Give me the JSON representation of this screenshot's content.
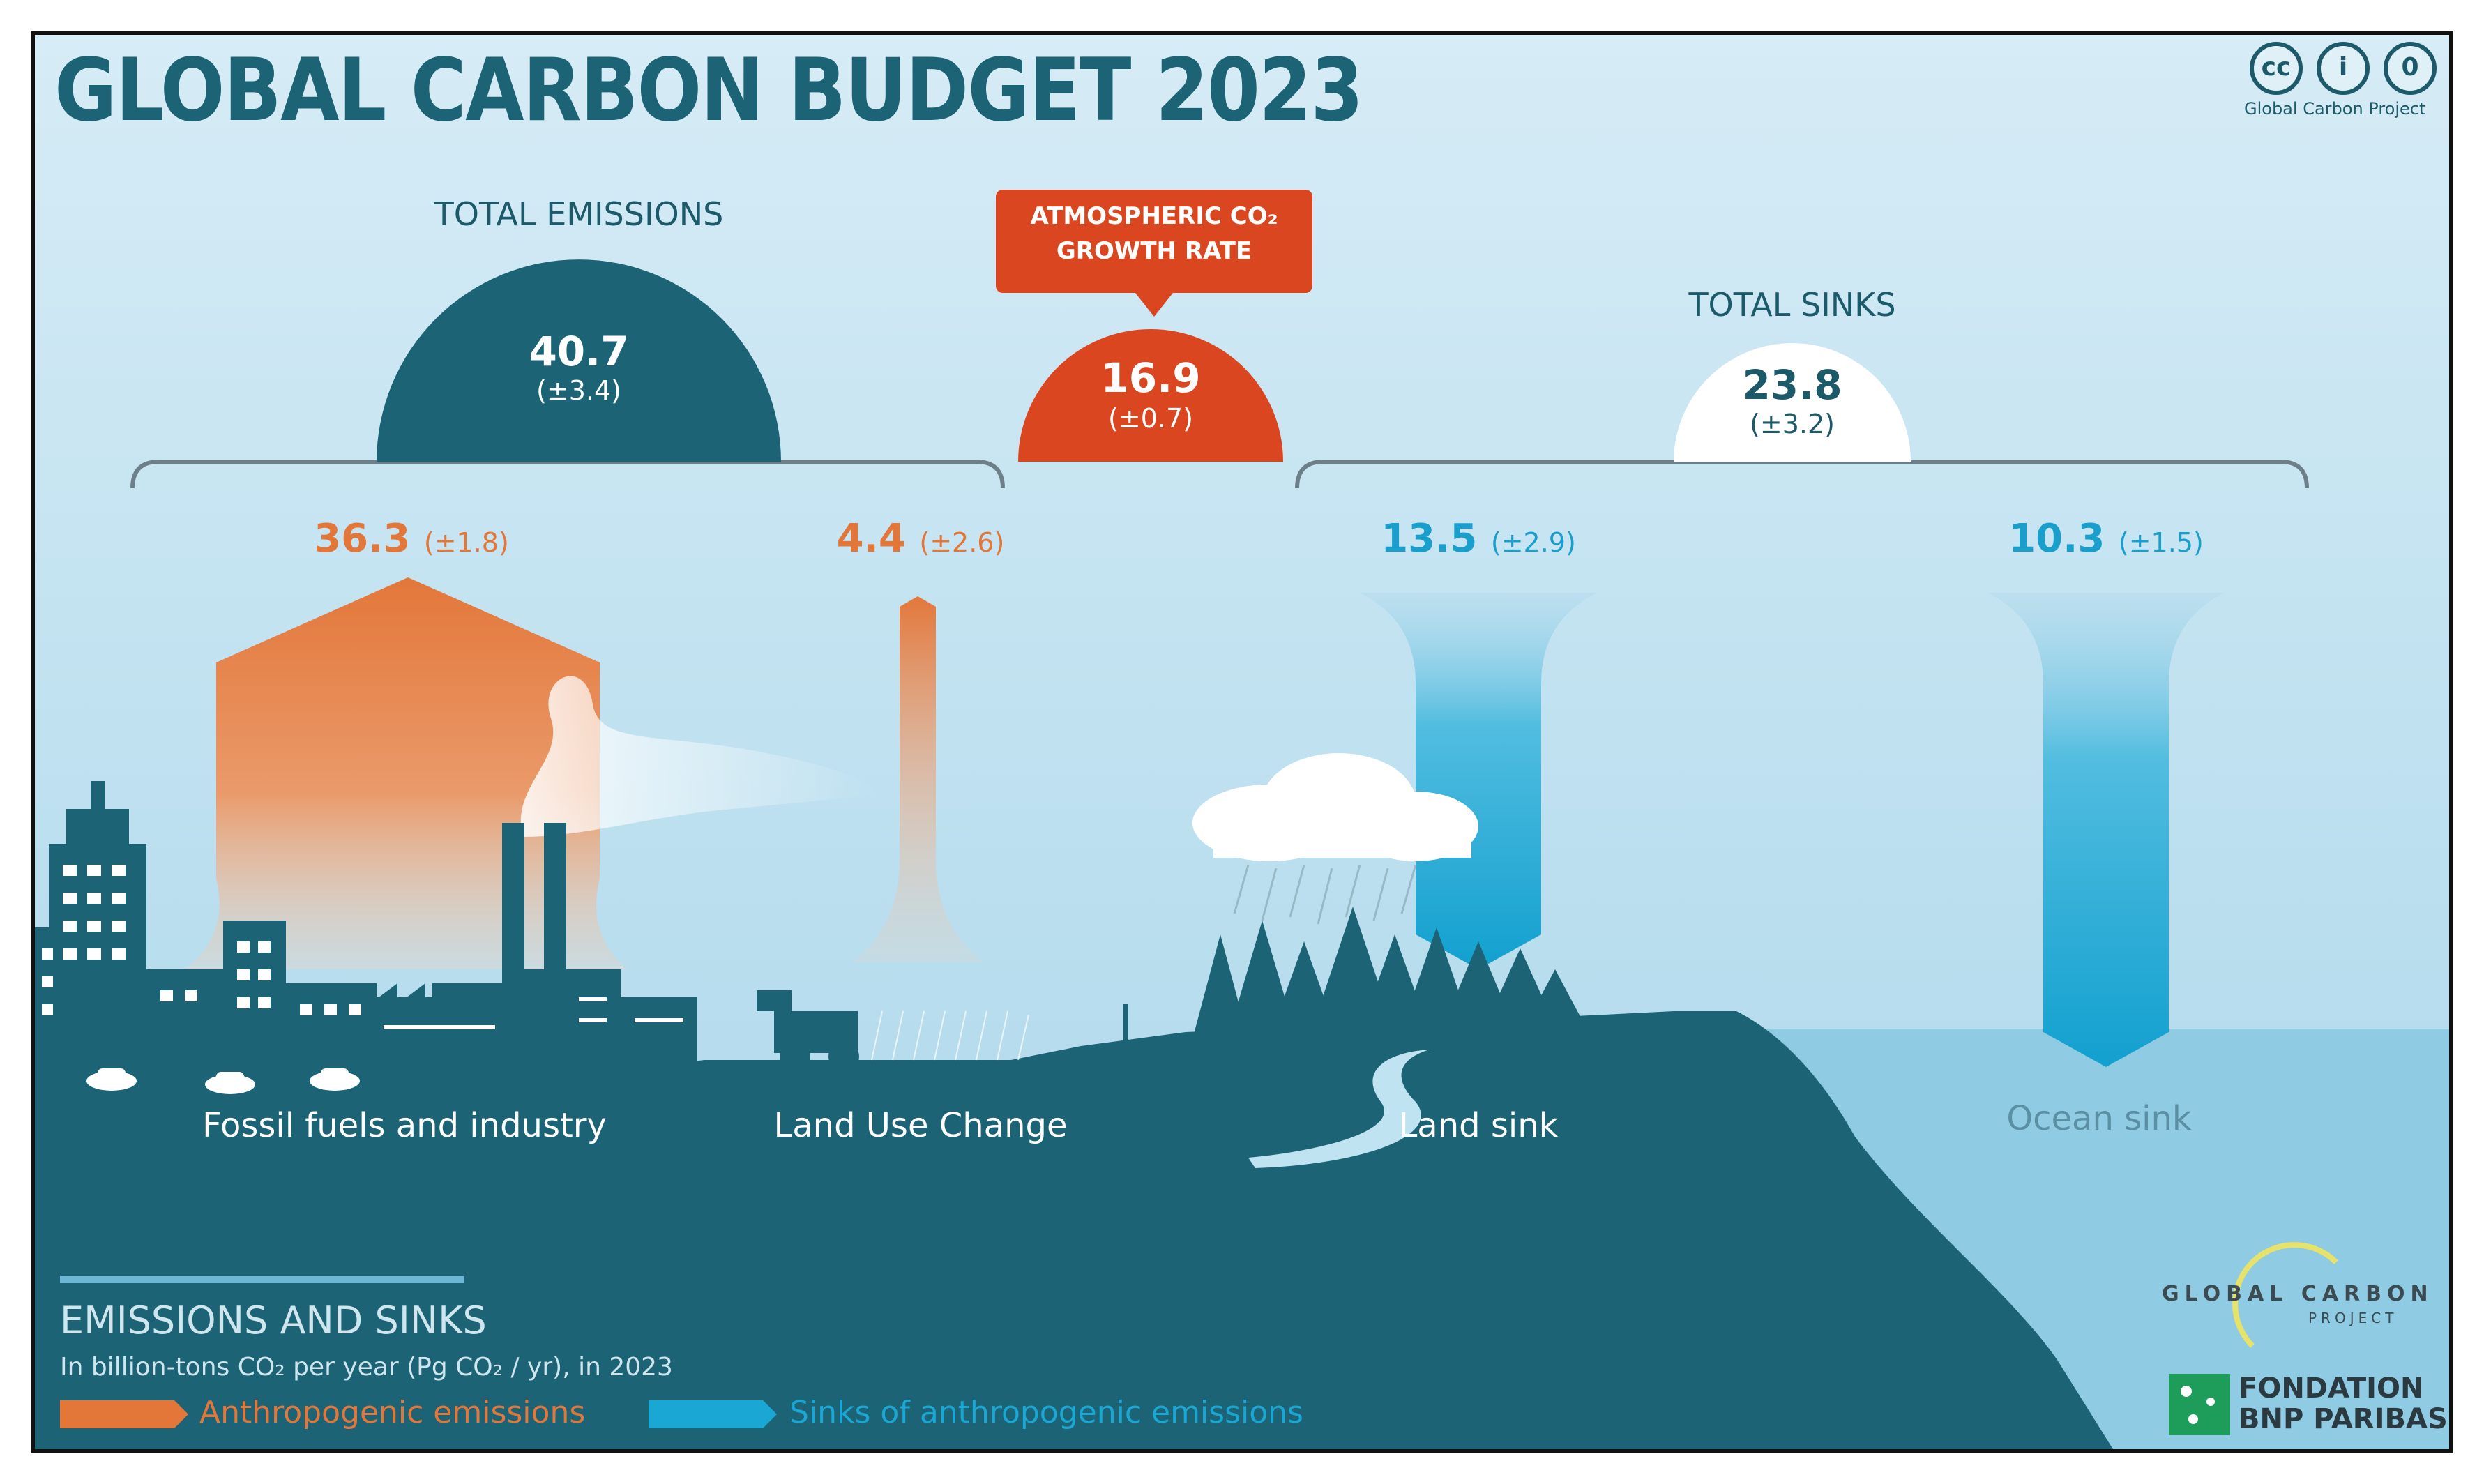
{
  "title": "GLOBAL CARBON BUDGET 2023",
  "license": {
    "icons": [
      "cc-icon",
      "attribution-icon",
      "zero-icon"
    ],
    "icon_glyphs": [
      "cc",
      "i",
      "0"
    ],
    "credit": "Global Carbon Project"
  },
  "total_emissions": {
    "heading": "TOTAL EMISSIONS",
    "value": "40.7",
    "uncertainty": "(±3.4)"
  },
  "atmospheric": {
    "heading_line1": "ATMOSPHERIC CO₂",
    "heading_line2": "GROWTH RATE",
    "value": "16.9",
    "uncertainty": "(±0.7)"
  },
  "total_sinks": {
    "heading": "TOTAL SINKS",
    "value": "23.8",
    "uncertainty": "(±3.2)"
  },
  "flows": [
    {
      "key": "fossil",
      "value": "36.3",
      "uncertainty": "(±1.8)",
      "label": "Fossil fuels and industry",
      "kind": "emission"
    },
    {
      "key": "landuse",
      "value": "4.4",
      "uncertainty": "(±2.6)",
      "label": "Land Use Change",
      "kind": "emission"
    },
    {
      "key": "landsink",
      "value": "13.5",
      "uncertainty": "(±2.9)",
      "label": "Land sink",
      "kind": "sink"
    },
    {
      "key": "oceansink",
      "value": "10.3",
      "uncertainty": "(±1.5)",
      "label": "Ocean sink",
      "kind": "sink"
    }
  ],
  "legend": {
    "heading": "EMISSIONS AND SINKS",
    "units": "In billion-tons CO₂ per year (Pg CO₂ / yr), in 2023",
    "emission_label": "Anthropogenic emissions",
    "sink_label": "Sinks of anthropogenic emissions"
  },
  "logos": {
    "gcp_line1": "GLOBAL CARBON",
    "gcp_line2": "PROJECT",
    "bnp_line1": "FONDATION",
    "bnp_line2": "BNP PARIBAS"
  },
  "colors": {
    "emission": "#e3773a",
    "sink": "#1aa7d4",
    "atmosphere": "#d9461f",
    "land": "#1c6475",
    "sky_top": "#cde8f4",
    "sea": "#8fcbe2"
  }
}
